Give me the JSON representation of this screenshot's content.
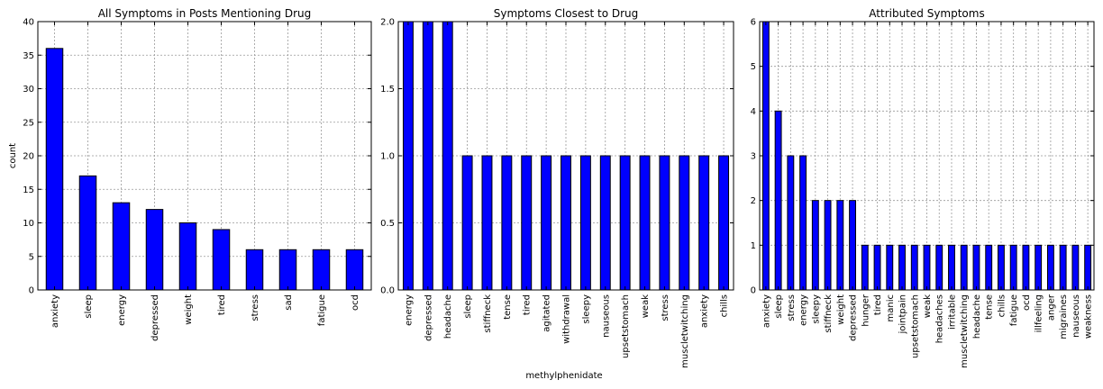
{
  "figure": {
    "xlabel": "methylphenidate"
  },
  "chart_data": [
    {
      "type": "bar",
      "title": "All Symptoms in Posts Mentioning Drug",
      "ylabel": "count",
      "xlabel": "",
      "ylim": [
        0,
        40
      ],
      "yticks": [
        0,
        5,
        10,
        15,
        20,
        25,
        30,
        35,
        40
      ],
      "grid": true,
      "categories": [
        "anxiety",
        "sleep",
        "energy",
        "depressed",
        "weight",
        "tired",
        "stress",
        "sad",
        "fatigue",
        "ocd"
      ],
      "values": [
        36,
        17,
        13,
        12,
        10,
        9,
        6,
        6,
        6,
        6
      ]
    },
    {
      "type": "bar",
      "title": "Symptoms Closest to Drug",
      "ylabel": "",
      "xlabel": "",
      "ylim": [
        0,
        2
      ],
      "yticks": [
        "0.0",
        "0.5",
        "1.0",
        "1.5",
        "2.0"
      ],
      "grid": true,
      "categories": [
        "energy",
        "depressed",
        "headache",
        "sleep",
        "stiffneck",
        "tense",
        "tired",
        "agitated",
        "withdrawal",
        "sleepy",
        "nauseous",
        "upsetstomach",
        "weak",
        "stress",
        "muscletwitching",
        "anxiety",
        "chills"
      ],
      "values": [
        2,
        2,
        2,
        1,
        1,
        1,
        1,
        1,
        1,
        1,
        1,
        1,
        1,
        1,
        1,
        1,
        1
      ]
    },
    {
      "type": "bar",
      "title": "Attributed Symptoms",
      "ylabel": "",
      "xlabel": "",
      "ylim": [
        0,
        6
      ],
      "yticks": [
        0,
        1,
        2,
        3,
        4,
        5,
        6
      ],
      "grid": true,
      "categories": [
        "anxiety",
        "sleep",
        "stress",
        "energy",
        "sleepy",
        "stiffneck",
        "weight",
        "depressed",
        "hunger",
        "tired",
        "manic",
        "jointpain",
        "upsetstomach",
        "weak",
        "headaches",
        "irritable",
        "muscletwitching",
        "headache",
        "tense",
        "chills",
        "fatigue",
        "ocd",
        "illfeeling",
        "anger",
        "migraines",
        "nauseous",
        "weakness"
      ],
      "values": [
        6,
        4,
        3,
        3,
        2,
        2,
        2,
        2,
        1,
        1,
        1,
        1,
        1,
        1,
        1,
        1,
        1,
        1,
        1,
        1,
        1,
        1,
        1,
        1,
        1,
        1,
        1
      ]
    }
  ]
}
